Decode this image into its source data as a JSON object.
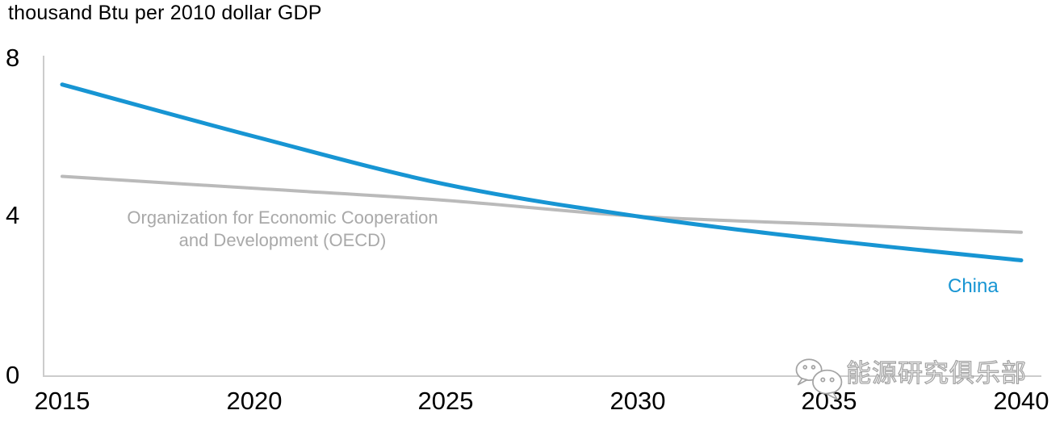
{
  "chart_data": {
    "type": "line",
    "title": "thousand Btu per 2010 dollar GDP",
    "xlabel": "",
    "ylabel": "thousand Btu per 2010 dollar GDP",
    "x": [
      2015,
      2020,
      2025,
      2030,
      2035,
      2040
    ],
    "categories": [
      "2015",
      "2020",
      "2025",
      "2030",
      "2035",
      "2040"
    ],
    "y_ticks": [
      "8",
      "4",
      "0"
    ],
    "ylim": [
      0,
      8
    ],
    "xlim": [
      2015,
      2040
    ],
    "grid": false,
    "legend_position": "inline-annotations",
    "series": [
      {
        "name": "Organization for Economic Cooperation and Development (OECD)",
        "color": "#bababa",
        "stroke_width": 4,
        "values": [
          5.0,
          4.7,
          4.4,
          4.0,
          3.8,
          3.6
        ]
      },
      {
        "name": "China",
        "color": "#1795d3",
        "stroke_width": 5,
        "values": [
          7.3,
          6.0,
          4.8,
          4.0,
          3.4,
          2.9
        ]
      }
    ],
    "annotations": {
      "oecd": {
        "line1": "Organization for Economic Cooperation",
        "line2": "and Development (OECD)",
        "color": "#a9a9a9"
      },
      "china": {
        "label": "China",
        "color": "#1795d3"
      }
    }
  },
  "colors": {
    "axis": "#cccccc",
    "text": "#000000",
    "china_blue": "#1795d3",
    "oecd_gray": "#bababa"
  },
  "watermark": {
    "icon": "wechat-icon",
    "text": "能源研究俱乐部",
    "color": "#a3a3a3"
  }
}
